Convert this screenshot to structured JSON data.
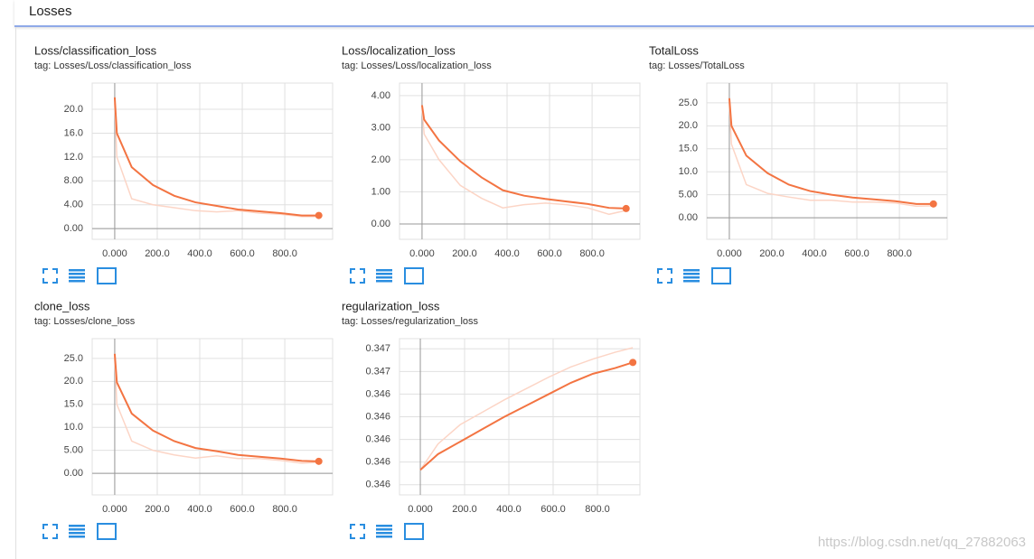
{
  "header": {
    "title": "Losses"
  },
  "watermark": "https://blog.csdn.net/qq_27882063",
  "chart_data": [
    {
      "type": "line",
      "title": "Loss/classification_loss",
      "subtitle": "tag: Losses/Loss/classification_loss",
      "x": [
        0,
        10,
        80,
        180,
        280,
        380,
        480,
        580,
        680,
        780,
        880,
        960
      ],
      "series": [
        {
          "color": "#fcd5c6",
          "values": [
            21,
            12,
            5,
            4,
            3.5,
            3,
            2.8,
            3,
            2.6,
            2.4,
            2,
            2
          ]
        },
        {
          "color": "#f37442",
          "values": [
            22,
            16,
            10.3,
            7.3,
            5.5,
            4.4,
            3.8,
            3.2,
            2.9,
            2.6,
            2.2,
            2.2
          ]
        }
      ],
      "xlim": [
        -106,
        1025
      ],
      "ylim": [
        -1.8,
        24.4
      ],
      "xticks": [
        {
          "value": 0,
          "label": "0.000"
        },
        {
          "value": 200,
          "label": "200.0"
        },
        {
          "value": 400,
          "label": "400.0"
        },
        {
          "value": 600,
          "label": "600.0"
        },
        {
          "value": 800,
          "label": "800.0"
        }
      ],
      "yticks": [
        {
          "value": 0,
          "label": "0.00"
        },
        {
          "value": 4,
          "label": "4.00"
        },
        {
          "value": 8,
          "label": "8.00"
        },
        {
          "value": 12,
          "label": "12.0"
        },
        {
          "value": 16,
          "label": "16.0"
        },
        {
          "value": 20,
          "label": "20.0"
        }
      ],
      "grid": true
    },
    {
      "type": "line",
      "title": "Loss/localization_loss",
      "subtitle": "tag: Losses/Loss/localization_loss",
      "x": [
        0,
        10,
        80,
        180,
        280,
        380,
        480,
        580,
        680,
        780,
        880,
        960
      ],
      "series": [
        {
          "color": "#fcd5c6",
          "values": [
            3.6,
            2.8,
            2.0,
            1.2,
            0.8,
            0.5,
            0.6,
            0.65,
            0.6,
            0.5,
            0.3,
            0.42
          ]
        },
        {
          "color": "#f37442",
          "values": [
            3.7,
            3.25,
            2.6,
            1.95,
            1.45,
            1.05,
            0.88,
            0.78,
            0.7,
            0.62,
            0.5,
            0.48
          ]
        }
      ],
      "xlim": [
        -106,
        1025
      ],
      "ylim": [
        -0.48,
        4.39
      ],
      "xticks": [
        {
          "value": 0,
          "label": "0.000"
        },
        {
          "value": 200,
          "label": "200.0"
        },
        {
          "value": 400,
          "label": "400.0"
        },
        {
          "value": 600,
          "label": "600.0"
        },
        {
          "value": 800,
          "label": "800.0"
        }
      ],
      "yticks": [
        {
          "value": 0,
          "label": "0.00"
        },
        {
          "value": 1,
          "label": "1.00"
        },
        {
          "value": 2,
          "label": "2.00"
        },
        {
          "value": 3,
          "label": "3.00"
        },
        {
          "value": 4,
          "label": "4.00"
        }
      ],
      "grid": true
    },
    {
      "type": "line",
      "title": "TotalLoss",
      "subtitle": "tag: Losses/TotalLoss",
      "x": [
        0,
        10,
        80,
        180,
        280,
        380,
        480,
        580,
        680,
        780,
        880,
        960
      ],
      "series": [
        {
          "color": "#fcd5c6",
          "values": [
            25,
            16,
            7.2,
            5.3,
            4.5,
            3.8,
            3.8,
            3.4,
            3.4,
            3.2,
            2.5,
            2.6
          ]
        },
        {
          "color": "#f37442",
          "values": [
            26,
            20,
            13.5,
            9.7,
            7.2,
            5.8,
            5,
            4.4,
            4,
            3.6,
            3,
            3
          ]
        }
      ],
      "xlim": [
        -106,
        1025
      ],
      "ylim": [
        -4.7,
        29.3
      ],
      "xticks": [
        {
          "value": 0,
          "label": "0.000"
        },
        {
          "value": 200,
          "label": "200.0"
        },
        {
          "value": 400,
          "label": "400.0"
        },
        {
          "value": 600,
          "label": "600.0"
        },
        {
          "value": 800,
          "label": "800.0"
        }
      ],
      "yticks": [
        {
          "value": 0,
          "label": "0.00"
        },
        {
          "value": 5,
          "label": "5.00"
        },
        {
          "value": 10,
          "label": "10.0"
        },
        {
          "value": 15,
          "label": "15.0"
        },
        {
          "value": 20,
          "label": "20.0"
        },
        {
          "value": 25,
          "label": "25.0"
        }
      ],
      "grid": true
    },
    {
      "type": "line",
      "title": "clone_loss",
      "subtitle": "tag: Losses/clone_loss",
      "x": [
        0,
        10,
        80,
        180,
        280,
        380,
        480,
        580,
        680,
        780,
        880,
        960
      ],
      "series": [
        {
          "color": "#fcd5c6",
          "values": [
            25,
            15,
            7,
            5,
            4,
            3.3,
            3.8,
            3.2,
            3.2,
            2.8,
            2.2,
            2.4
          ]
        },
        {
          "color": "#f37442",
          "values": [
            26,
            19.8,
            13,
            9.3,
            7,
            5.5,
            4.8,
            4,
            3.6,
            3.2,
            2.7,
            2.6
          ]
        }
      ],
      "xlim": [
        -106,
        1025
      ],
      "ylim": [
        -4.7,
        29.3
      ],
      "xticks": [
        {
          "value": 0,
          "label": "0.000"
        },
        {
          "value": 200,
          "label": "200.0"
        },
        {
          "value": 400,
          "label": "400.0"
        },
        {
          "value": 600,
          "label": "600.0"
        },
        {
          "value": 800,
          "label": "800.0"
        }
      ],
      "yticks": [
        {
          "value": 0,
          "label": "0.00"
        },
        {
          "value": 5,
          "label": "5.00"
        },
        {
          "value": 10,
          "label": "10.0"
        },
        {
          "value": 15,
          "label": "15.0"
        },
        {
          "value": 20,
          "label": "20.0"
        },
        {
          "value": 25,
          "label": "25.0"
        }
      ],
      "grid": true
    },
    {
      "type": "line",
      "title": "regularization_loss",
      "subtitle": "tag: Losses/regularization_loss",
      "x": [
        0,
        80,
        180,
        280,
        380,
        480,
        580,
        680,
        780,
        880,
        960
      ],
      "series": [
        {
          "color": "#fcd5c6",
          "values": [
            0.34573,
            0.34596,
            0.34613,
            0.34624,
            0.34635,
            0.34645,
            0.34655,
            0.34664,
            0.34671,
            0.34677,
            0.34681
          ]
        },
        {
          "color": "#f37442",
          "values": [
            0.34573,
            0.34587,
            0.34598,
            0.34609,
            0.3462,
            0.3463,
            0.3464,
            0.3465,
            0.34658,
            0.34663,
            0.34668
          ]
        }
      ],
      "xlim": [
        -94,
        992
      ],
      "ylim": [
        0.34551,
        0.34689
      ],
      "xticks": [
        {
          "value": 0,
          "label": "0.000"
        },
        {
          "value": 200,
          "label": "200.0"
        },
        {
          "value": 400,
          "label": "400.0"
        },
        {
          "value": 600,
          "label": "600.0"
        },
        {
          "value": 800,
          "label": "800.0"
        }
      ],
      "yticks": [
        {
          "value": 0.3456,
          "label": "0.346"
        },
        {
          "value": 0.3458,
          "label": "0.346"
        },
        {
          "value": 0.346,
          "label": "0.346"
        },
        {
          "value": 0.3462,
          "label": "0.346"
        },
        {
          "value": 0.3464,
          "label": "0.346"
        },
        {
          "value": 0.3466,
          "label": "0.347"
        },
        {
          "value": 0.3468,
          "label": "0.347"
        }
      ],
      "grid": true
    }
  ]
}
